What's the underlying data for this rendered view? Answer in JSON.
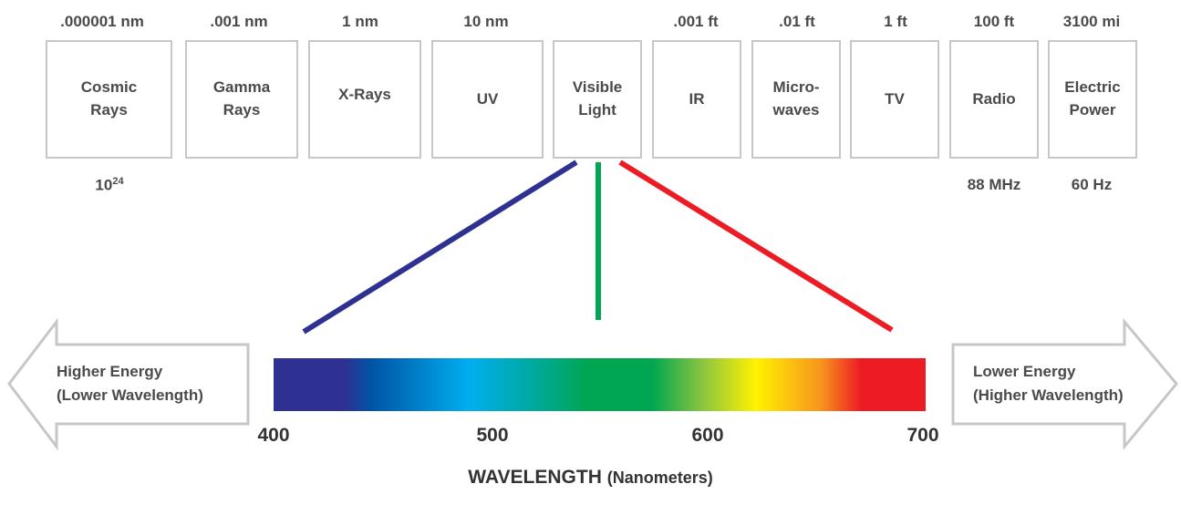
{
  "wavelength_labels": [
    ".000001 nm",
    ".001 nm",
    "1 nm",
    "10 nm",
    "",
    ".001 ft",
    ".01 ft",
    "1 ft",
    "100 ft",
    "3100 mi"
  ],
  "bands": [
    {
      "label": "Cosmic\nRays"
    },
    {
      "label": "Gamma\nRays"
    },
    {
      "label": "X-Rays"
    },
    {
      "label": "UV"
    },
    {
      "label": "Visible\nLight"
    },
    {
      "label": "IR"
    },
    {
      "label": "Micro-\nwaves"
    },
    {
      "label": "TV"
    },
    {
      "label": "Radio"
    },
    {
      "label": "Electric\nPower"
    }
  ],
  "frequency_labels": {
    "cosmic": {
      "base": "10",
      "exp": "24"
    },
    "radio": "88 MHz",
    "electric": "60 Hz"
  },
  "left_arrow": {
    "line1": "Higher Energy",
    "line2": "(Lower Wavelength)"
  },
  "right_arrow": {
    "line1": "Lower Energy",
    "line2": "(Higher Wavelength)"
  },
  "scale_ticks": [
    "400",
    "500",
    "600",
    "700"
  ],
  "axis_title": {
    "main": "WAVELENGTH",
    "unit": "(Nanometers)"
  },
  "colors": {
    "blue": "#2e3192",
    "green": "#00a651",
    "red": "#ed1c24",
    "box_border": "#c7c7c7"
  }
}
